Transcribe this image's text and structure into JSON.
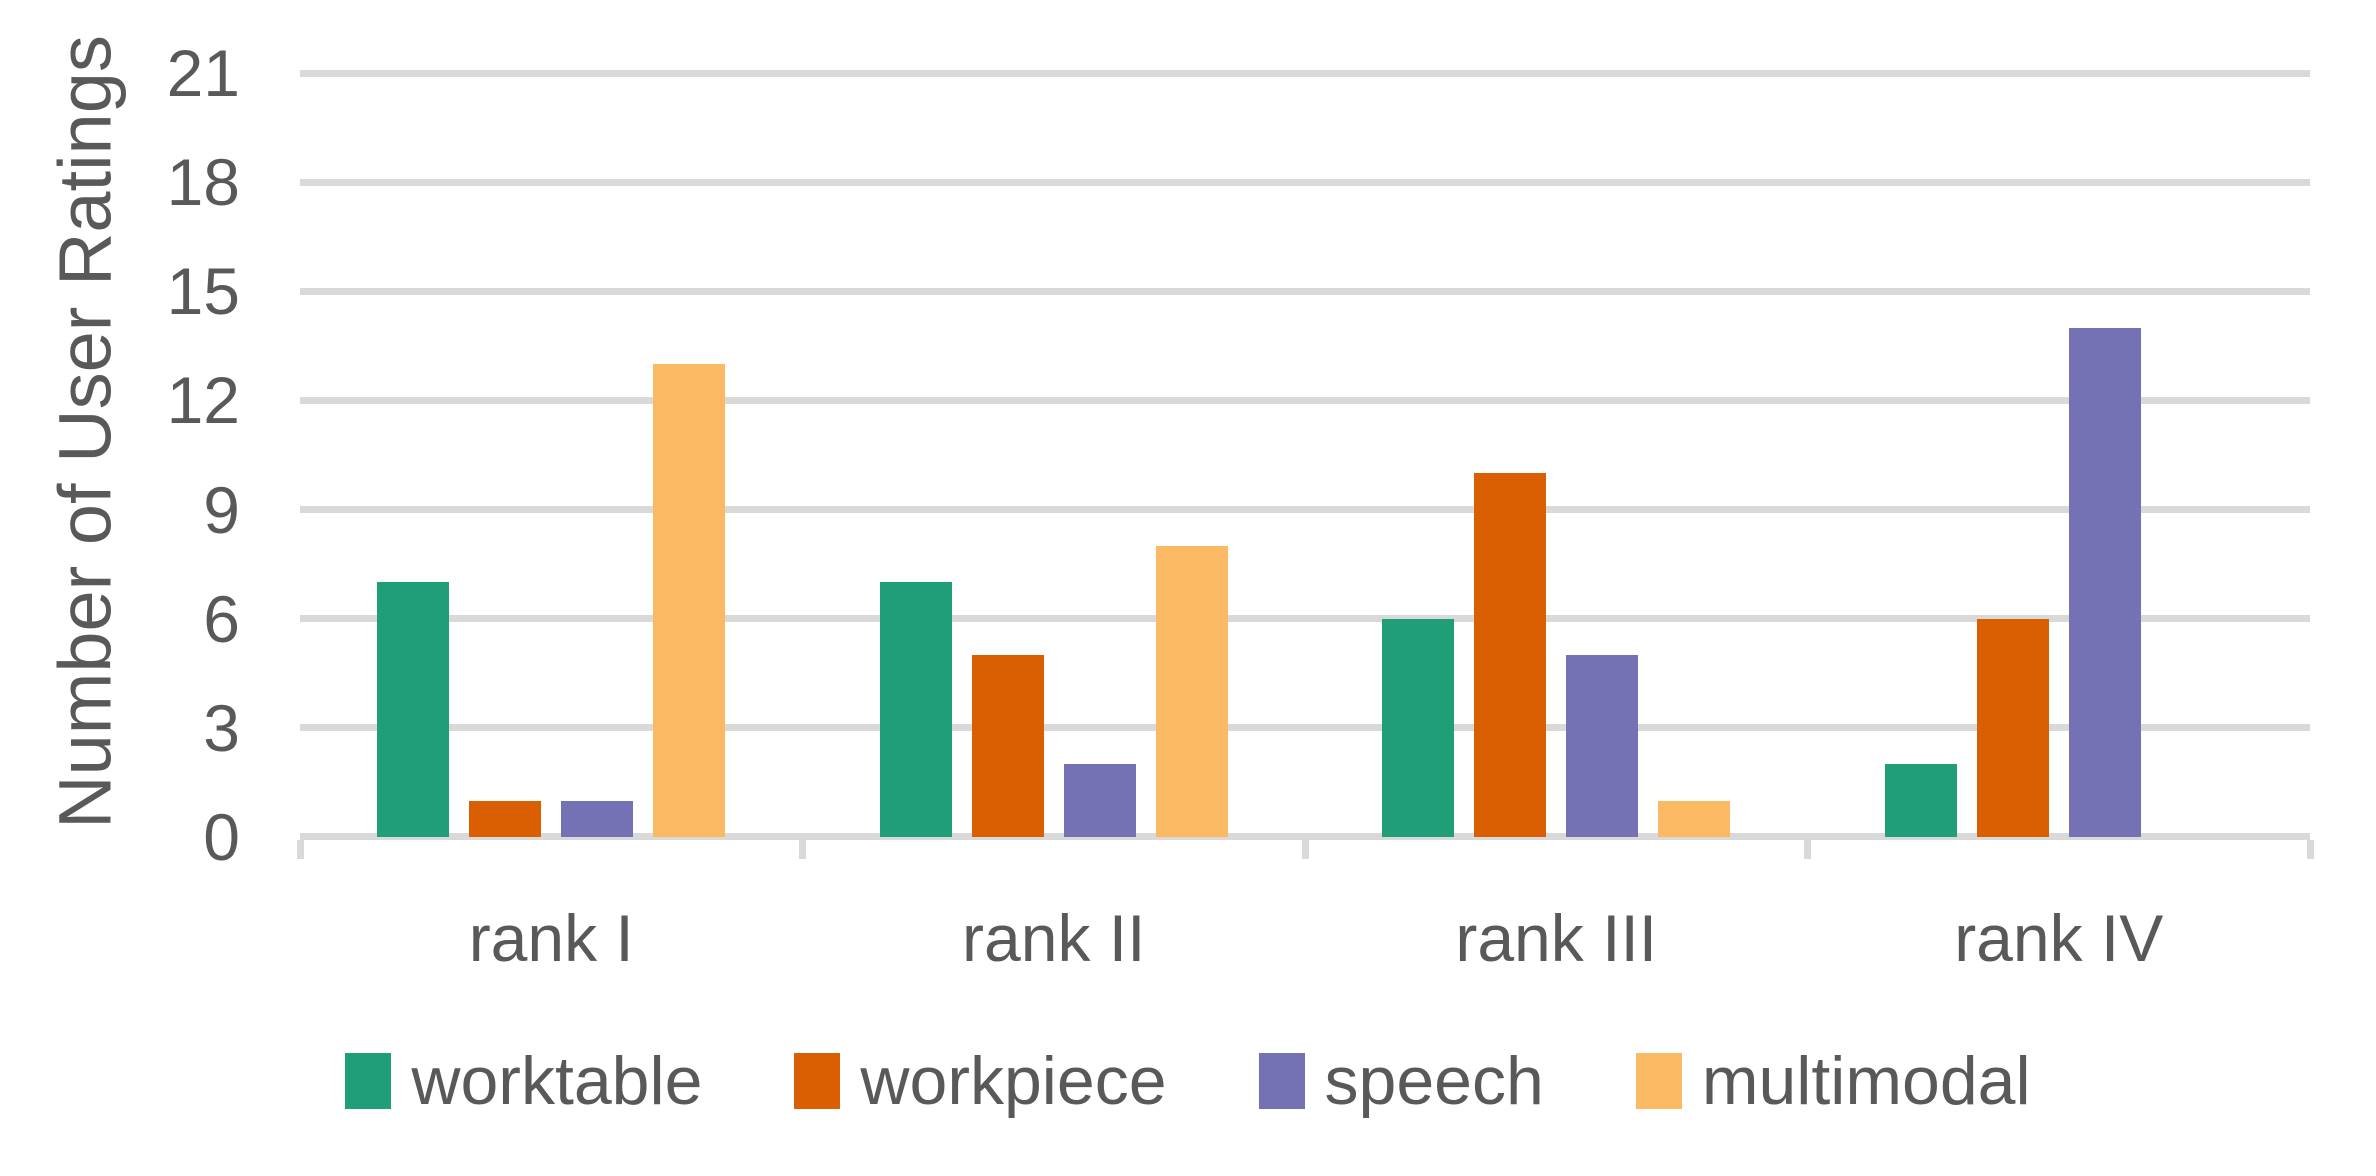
{
  "chart_data": {
    "type": "bar",
    "title": "",
    "xlabel": "",
    "ylabel": "Number of User Ratings",
    "categories": [
      "rank I",
      "rank II",
      "rank III",
      "rank IV"
    ],
    "series": [
      {
        "name": "worktable",
        "color": "#1F9E77",
        "values": [
          7,
          7,
          6,
          2
        ]
      },
      {
        "name": "workpiece",
        "color": "#D95F02",
        "values": [
          1,
          5,
          10,
          6
        ]
      },
      {
        "name": "speech",
        "color": "#7472B5",
        "values": [
          1,
          2,
          5,
          14
        ]
      },
      {
        "name": "multimodal",
        "color": "#FBB964",
        "values": [
          13,
          8,
          1,
          0
        ]
      }
    ],
    "ylim": [
      0,
      21
    ],
    "yticks": [
      0,
      3,
      6,
      9,
      12,
      15,
      18,
      21
    ],
    "grid": true,
    "legend_position": "bottom",
    "colors": {
      "grid": "#D9D9D9",
      "axis": "#D9D9D9",
      "text": "#595959",
      "background": "#FFFFFF"
    }
  }
}
